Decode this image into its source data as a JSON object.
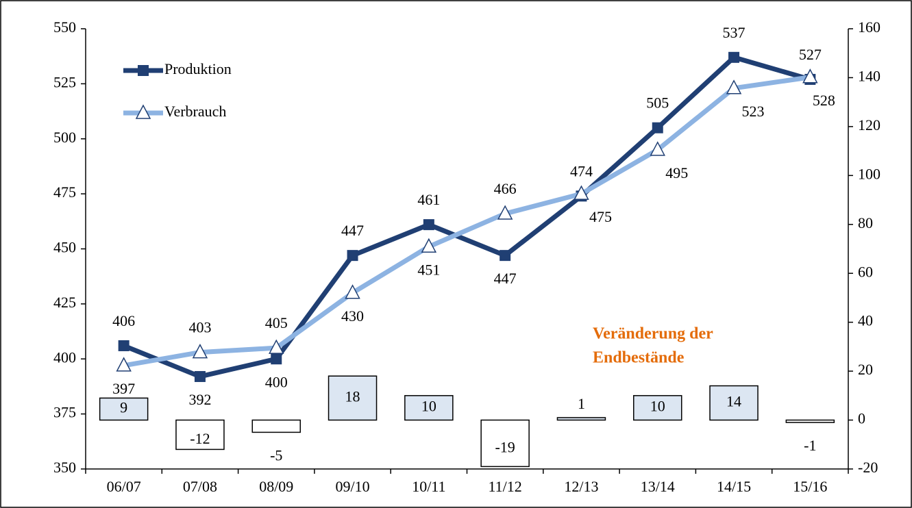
{
  "chart_data": {
    "type": "bar-line",
    "categories": [
      "06/07",
      "07/08",
      "08/09",
      "09/10",
      "10/11",
      "11/12",
      "12/13",
      "13/14",
      "14/15",
      "15/16"
    ],
    "series": [
      {
        "name": "Produktion",
        "type": "line",
        "marker": "square",
        "color": "#203f73",
        "values": [
          406,
          392,
          400,
          447,
          461,
          447,
          474,
          505,
          537,
          527
        ]
      },
      {
        "name": "Verbrauch",
        "type": "line",
        "marker": "triangle",
        "color": "#8db3e2",
        "values": [
          397,
          403,
          405,
          430,
          451,
          466,
          475,
          495,
          523,
          528
        ]
      },
      {
        "type": "bar",
        "axis": "y2",
        "color": "#dce6f2",
        "negative_color": "#ffffff",
        "values": [
          9,
          -12,
          -5,
          18,
          10,
          -19,
          1,
          10,
          14,
          -1
        ]
      }
    ],
    "annotation": [
      "Veränderung der",
      "Endbestände"
    ],
    "annotation_color": "#e46c0a",
    "ylim": [
      350,
      550
    ],
    "yticks": [
      350,
      375,
      400,
      425,
      450,
      475,
      500,
      525,
      550
    ],
    "y2lim": [
      -20,
      160
    ],
    "y2ticks": [
      -20,
      0,
      20,
      40,
      60,
      80,
      100,
      120,
      140,
      160
    ],
    "legend": "top-left"
  }
}
